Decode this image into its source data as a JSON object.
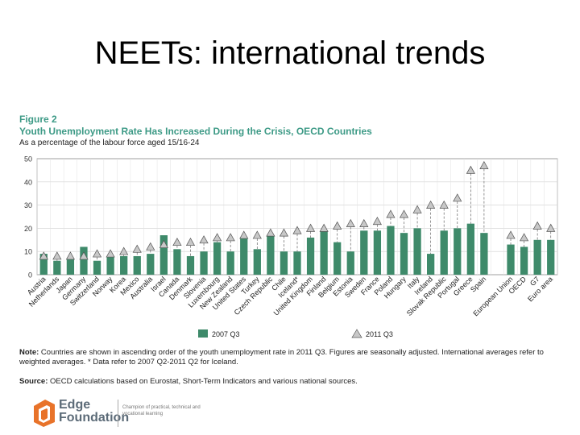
{
  "slide": {
    "title": "NEETs: international trends"
  },
  "figure": {
    "label": "Figure 2",
    "title": "Youth Unemployment Rate Has Increased During the Crisis, OECD Countries",
    "subtitle": "As a percentage of the labour force aged 15/16-24"
  },
  "colors": {
    "bar": "#3e8a6a",
    "marker": "#c8c8c8",
    "teal": "#3d9a86"
  },
  "chart_data": {
    "type": "bar",
    "ylim": [
      0,
      50
    ],
    "yticks": [
      "0",
      "10",
      "20",
      "30",
      "40",
      "50"
    ],
    "grid": true,
    "legend_position": "bottom",
    "categories": [
      "Austria",
      "Netherlands",
      "Japan",
      "Germany",
      "Switzerland",
      "Norway",
      "Korea",
      "Mexico",
      "Australia",
      "Israel",
      "Canada",
      "Denmark",
      "Slovenia",
      "Luxembourg",
      "New Zealand",
      "United States",
      "Turkey",
      "Czech Republic",
      "Chile",
      "Iceland*",
      "United Kingdom",
      "Finland",
      "Belgium",
      "Estonia",
      "Sweden",
      "France",
      "Poland",
      "Hungary",
      "Italy",
      "Ireland",
      "Slovak Republic",
      "Portugal",
      "Greece",
      "Spain",
      "",
      "European Union",
      "OECD",
      "G7",
      "Euro area"
    ],
    "series": [
      {
        "name": "2007 Q3",
        "kind": "bar",
        "values": [
          9,
          6,
          7,
          12,
          6,
          8,
          8,
          8,
          9,
          17,
          11,
          8,
          10,
          14,
          10,
          16,
          11,
          17,
          10,
          10,
          16,
          19,
          14,
          10,
          19,
          19,
          21,
          18,
          20,
          9,
          19,
          20,
          22,
          18,
          null,
          13,
          12,
          15,
          15
        ]
      },
      {
        "name": "2011 Q3",
        "kind": "marker",
        "values": [
          8,
          8,
          8,
          8,
          9,
          9,
          10,
          11,
          12,
          13,
          14,
          14,
          15,
          16,
          16,
          17,
          17,
          18,
          18,
          19,
          20,
          20,
          21,
          22,
          22,
          23,
          26,
          26,
          28,
          30,
          30,
          33,
          45,
          47,
          null,
          17,
          16,
          21,
          20
        ]
      }
    ]
  },
  "notes": {
    "note_label": "Note:",
    "note_text": "Countries are shown in ascending order of the youth unemployment rate in 2011 Q3. Figures are seasonally adjusted. International averages refer to weighted averages. * Data refer to 2007 Q2-2011 Q2 for Iceland.",
    "source_label": "Source:",
    "source_text": "OECD calculations based on Eurostat, Short-Term Indicators and various national sources."
  },
  "logo": {
    "line1": "Edge",
    "line2": "Foundation",
    "tagline": "Champion of practical, technical and vocational learning",
    "icon": "edge-logo-icon"
  }
}
